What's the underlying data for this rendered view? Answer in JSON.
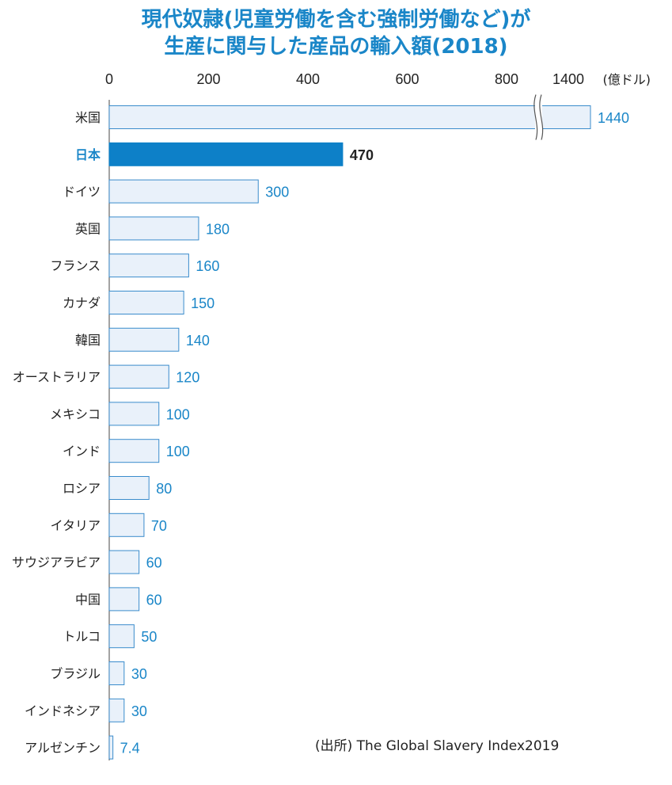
{
  "chart_data": {
    "type": "bar",
    "orientation": "horizontal",
    "title_line1": "現代奴隷(児童労働を含む強制労働など)が",
    "title_line2": "生産に関与した産品の輸入額(2018)",
    "unit_label": "(億ドル)",
    "x_ticks": [
      "0",
      "200",
      "400",
      "600",
      "800",
      "1400"
    ],
    "axis_break": true,
    "categories": [
      "米国",
      "日本",
      "ドイツ",
      "英国",
      "フランス",
      "カナダ",
      "韓国",
      "オーストラリア",
      "メキシコ",
      "インド",
      "ロシア",
      "イタリア",
      "サウジアラビア",
      "中国",
      "トルコ",
      "ブラジル",
      "インドネシア",
      "アルゼンチン"
    ],
    "values": [
      1440,
      470,
      300,
      180,
      160,
      150,
      140,
      120,
      100,
      100,
      80,
      70,
      60,
      60,
      50,
      30,
      30,
      7.4
    ],
    "value_labels": [
      "1440",
      "470",
      "300",
      "180",
      "160",
      "150",
      "140",
      "120",
      "100",
      "100",
      "80",
      "70",
      "60",
      "60",
      "50",
      "30",
      "30",
      "7.4"
    ],
    "highlight_index": 1,
    "source": "(出所) The Global Slavery Index2019",
    "colors": {
      "bar_fill": "#e9f1fa",
      "bar_stroke": "#3a8ccc",
      "highlight": "#0d80c8",
      "accent_text": "#1a86c8"
    }
  }
}
